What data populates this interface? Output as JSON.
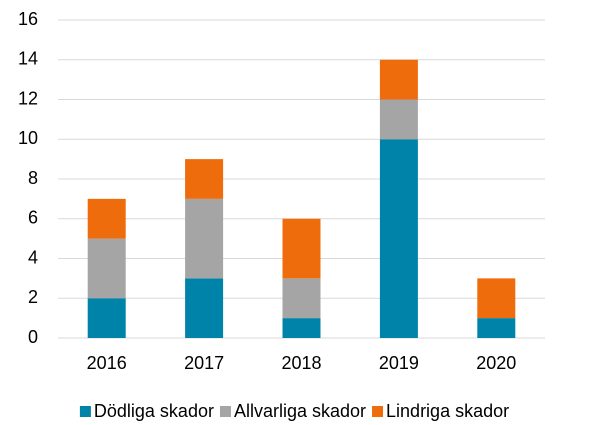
{
  "chart_data": {
    "type": "bar",
    "stacked": true,
    "categories": [
      "2016",
      "2017",
      "2018",
      "2019",
      "2020"
    ],
    "series": [
      {
        "name": "Dödliga skador",
        "color": "#0083a9",
        "values": [
          2,
          3,
          1,
          10,
          1
        ]
      },
      {
        "name": "Allvarliga skador",
        "color": "#a5a5a5",
        "values": [
          3,
          4,
          2,
          2,
          0
        ]
      },
      {
        "name": "Lindriga skador",
        "color": "#ee6c0b",
        "values": [
          2,
          2,
          3,
          2,
          2
        ]
      }
    ],
    "ylim": [
      0,
      16
    ],
    "yticks": [
      0,
      2,
      4,
      6,
      8,
      10,
      12,
      14,
      16
    ],
    "grid": true,
    "legend": "bottom"
  }
}
